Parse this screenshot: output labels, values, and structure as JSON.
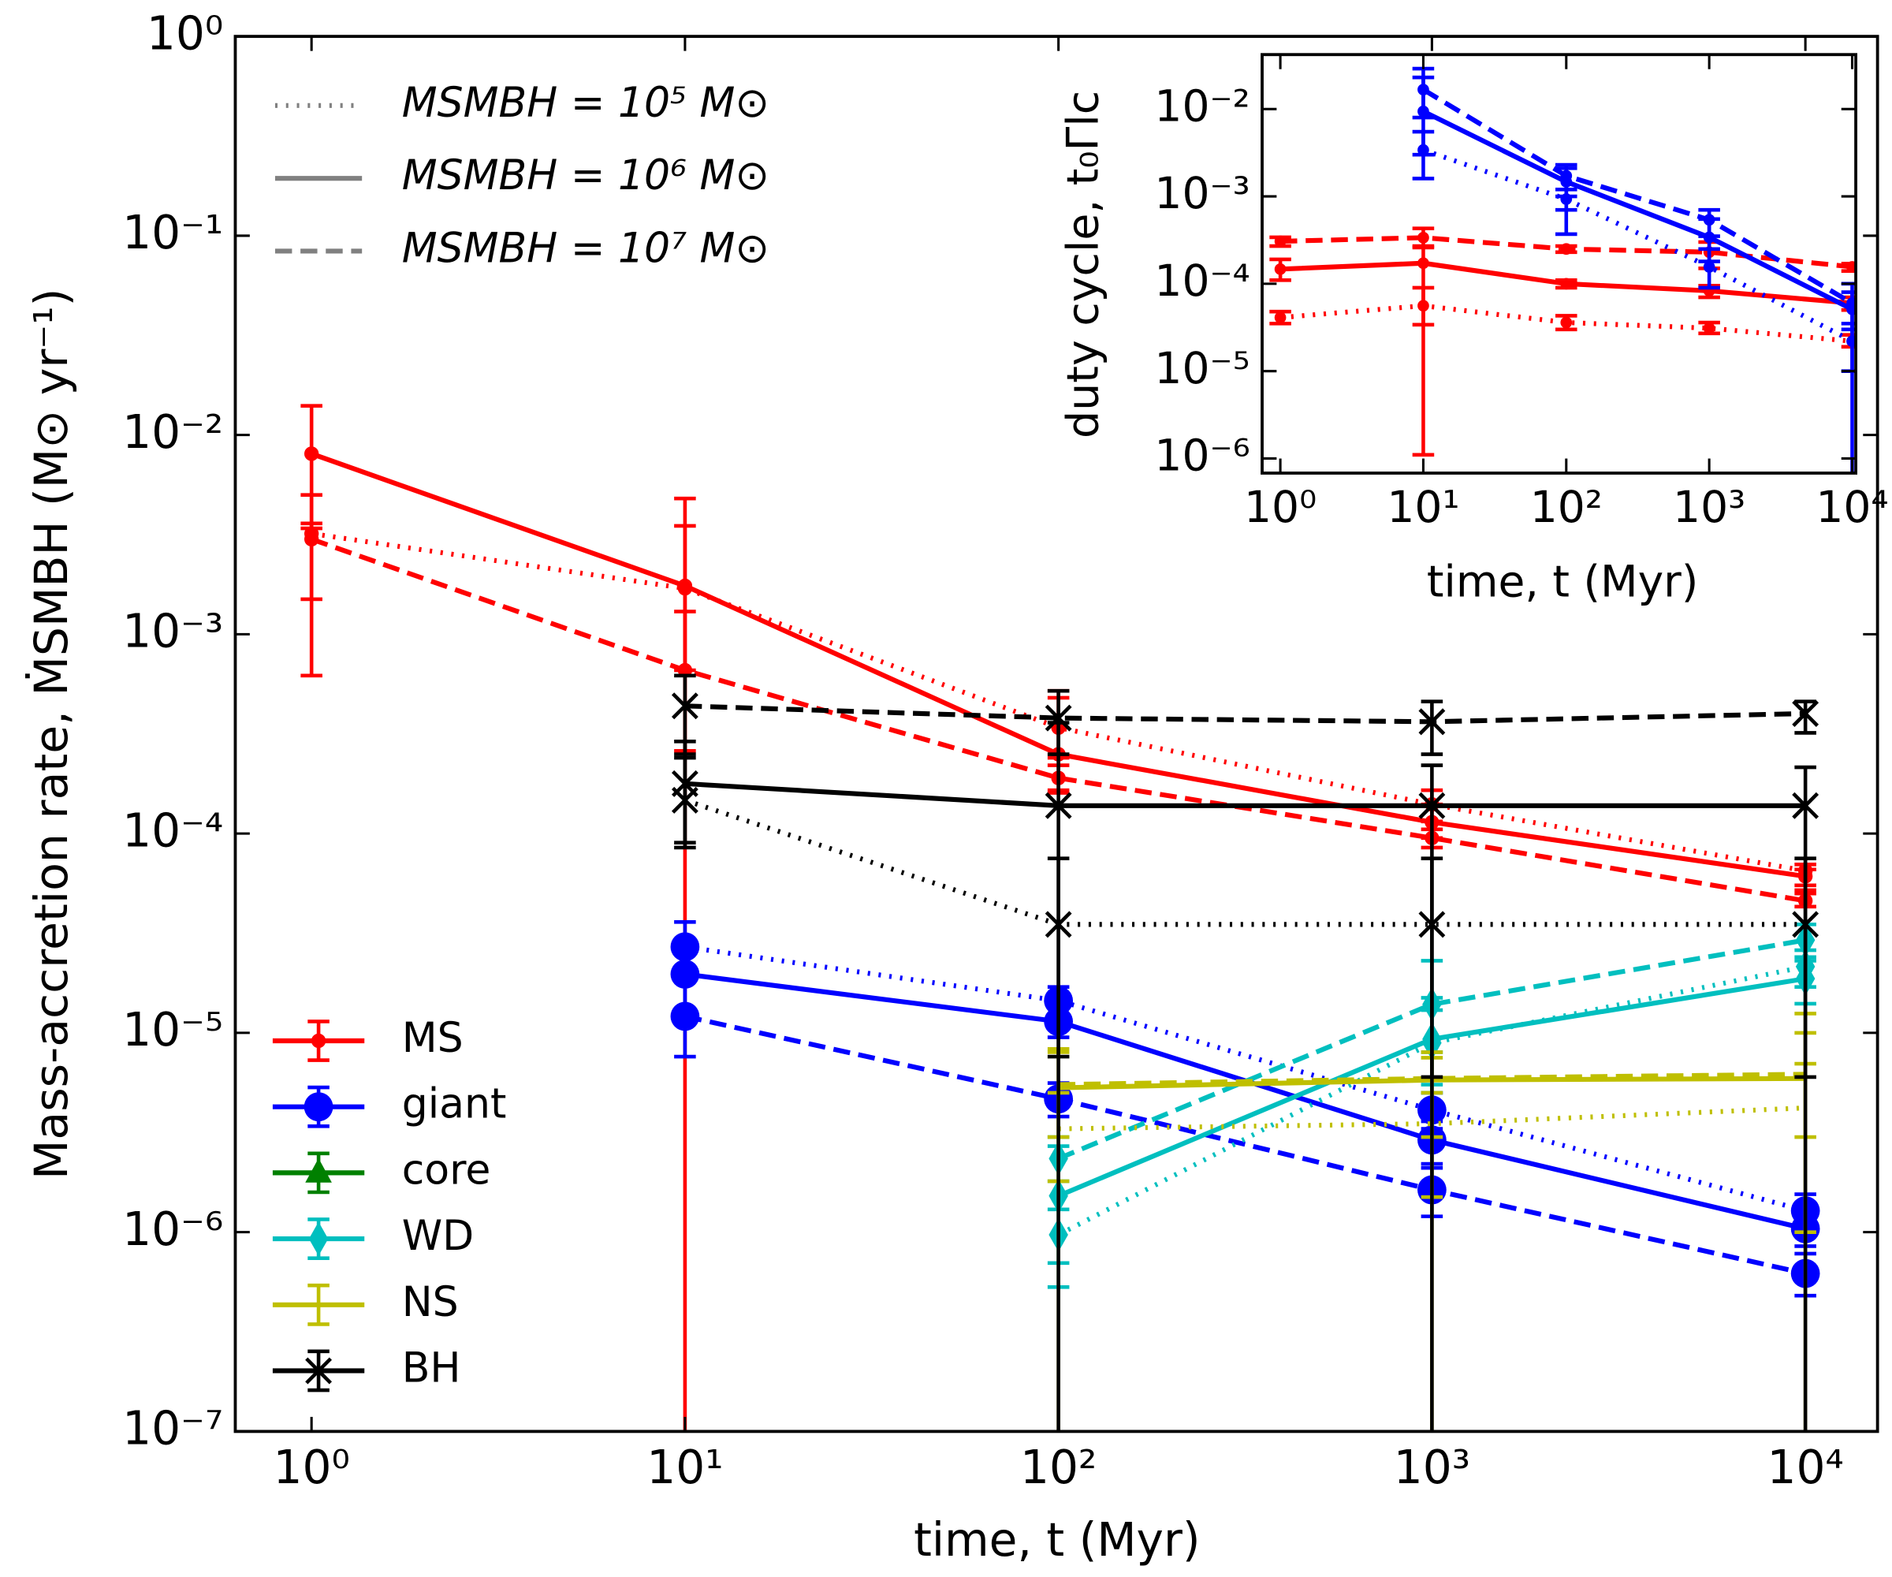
{
  "chart_data": {
    "type": "line",
    "xlabel": "time,  t (Myr)",
    "ylabel": "Mass-accretion rate,  ṀSMBH (M⊙ yr⁻¹)",
    "xscale": "log",
    "yscale": "log",
    "xlim": [
      0.625,
      15600
    ],
    "ylim": [
      1e-07,
      1
    ],
    "xticks": [
      {
        "value": 1,
        "label": "10⁰"
      },
      {
        "value": 10,
        "label": "10¹"
      },
      {
        "value": 100,
        "label": "10²"
      },
      {
        "value": 1000,
        "label": "10³"
      },
      {
        "value": 10000,
        "label": "10⁴"
      }
    ],
    "yticks": [
      {
        "value": 1e-07,
        "label": "10⁻⁷"
      },
      {
        "value": 1e-06,
        "label": "10⁻⁶"
      },
      {
        "value": 1e-05,
        "label": "10⁻⁵"
      },
      {
        "value": 0.0001,
        "label": "10⁻⁴"
      },
      {
        "value": 0.001,
        "label": "10⁻³"
      },
      {
        "value": 0.01,
        "label": "10⁻²"
      },
      {
        "value": 0.1,
        "label": "10⁻¹"
      },
      {
        "value": 1,
        "label": "10⁰"
      }
    ],
    "masses": [
      {
        "label": "MSMBH = 10⁵ M⊙",
        "dash": "dotted"
      },
      {
        "label": "MSMBH = 10⁶ M⊙",
        "dash": "solid"
      },
      {
        "label": "MSMBH = 10⁷ M⊙",
        "dash": "dashed"
      }
    ],
    "mass_legend_loc": "upper left",
    "type_legend_loc": "lower left",
    "series": [
      {
        "name": "MS",
        "color": "#ff0000",
        "marker": "small-circle",
        "x": [
          1,
          10,
          100,
          1000,
          10000
        ],
        "values": [
          [
            0.0032,
            0.0017,
            0.00034,
            0.00014,
            6.5e-05
          ],
          [
            0.00805,
            0.00175,
            0.00025,
            0.000114,
            6.1e-05
          ],
          [
            0.003,
            0.00066,
            0.00019,
            9.5e-05,
            4.6e-05
          ]
        ],
        "lower": [
          [
            0.0015,
            0.00066,
            0.00024,
            0.000115,
            5.5e-05
          ],
          [
            0.0034,
            1e-08,
            0.00016,
            9.5e-05,
            5.2e-05
          ],
          [
            0.00062,
            0.00026,
            0.000165,
            8.5e-05,
            4.3e-05
          ]
        ],
        "upper": [
          [
            0.005,
            0.0035,
            0.00048,
            0.000165,
            7e-05
          ],
          [
            0.014,
            0.0048,
            0.00052,
            0.00014,
            6.6e-05
          ],
          [
            0.0036,
            0.0013,
            0.00022,
            0.000105,
            5e-05
          ]
        ]
      },
      {
        "name": "giant",
        "color": "#0000ff",
        "marker": "circle",
        "x": [
          10,
          100,
          1000,
          10000
        ],
        "values": [
          [
            2.7e-05,
            1.45e-05,
            4.1e-06,
            1.28e-06
          ],
          [
            1.97e-05,
            1.14e-05,
            2.9e-06,
            1.04e-06
          ],
          [
            1.21e-05,
            4.66e-06,
            1.63e-06,
            6.2e-07
          ]
        ],
        "lower": [
          [
            1.9e-05,
            1.2e-05,
            3.3e-06,
            1.05e-06
          ],
          [
            1.3e-05,
            9.5e-06,
            2.2e-06,
            8.5e-07
          ],
          [
            7.6e-06,
            3.8e-06,
            1.2e-06,
            4.8e-07
          ]
        ],
        "upper": [
          [
            3.6e-05,
            1.7e-05,
            5e-06,
            1.55e-06
          ],
          [
            2.8e-05,
            1.4e-05,
            3.6e-06,
            1.25e-06
          ],
          [
            1.8e-05,
            5.6e-06,
            2.1e-06,
            7.8e-07
          ]
        ]
      },
      {
        "name": "core",
        "color": "#008000",
        "marker": "triangle",
        "x": [],
        "values": [
          [],
          [],
          []
        ],
        "lower": [
          [],
          [],
          []
        ],
        "upper": [
          [],
          [],
          []
        ]
      },
      {
        "name": "WD",
        "color": "#00bfbf",
        "marker": "thin-diamond",
        "x": [
          100,
          1000,
          10000
        ],
        "values": [
          [
            9.7e-07,
            8.9e-06,
            2.15e-05
          ],
          [
            1.52e-06,
            9.3e-06,
            1.87e-05
          ],
          [
            2.34e-06,
            1.39e-05,
            2.92e-05
          ]
        ],
        "lower": [
          [
            7e-07,
            5e-06,
            1.7e-05
          ],
          [
            5.3e-07,
            5.5e-06,
            1.4e-05
          ],
          [
            1.8e-06,
            8e-06,
            2.4e-05
          ]
        ],
        "upper": [
          [
            1.3e-06,
            1.3e-05,
            2.6e-05
          ],
          [
            2.7e-06,
            1.5e-05,
            2.3e-05
          ],
          [
            3e-06,
            2.3e-05,
            3.5e-05
          ]
        ]
      },
      {
        "name": "NS",
        "color": "#bfbf00",
        "marker": "none",
        "x": [
          100,
          1000,
          10000
        ],
        "values": [
          [
            3.3e-06,
            3.5e-06,
            4.2e-06
          ],
          [
            5.3e-06,
            5.8e-06,
            5.9e-06
          ],
          [
            5.5e-06,
            5.9e-06,
            6.2e-06
          ]
        ],
        "lower": [
          [
            1.8e-06,
            1.5e-06,
            1e-06
          ],
          [
            1e-08,
            1e-08,
            1e-08
          ],
          [
            3e-06,
            3e-06,
            3e-06
          ]
        ],
        "upper": [
          [
            5e-06,
            5e-06,
            7e-06
          ],
          [
            8.3e-06,
            7.5e-06,
            1.25e-05
          ],
          [
            8e-06,
            8e-06,
            1e-05
          ]
        ]
      },
      {
        "name": "BH",
        "color": "#000000",
        "marker": "x",
        "x": [
          10,
          100,
          1000,
          10000
        ],
        "values": [
          [
            0.000147,
            3.5e-05,
            3.5e-05,
            3.5e-05
          ],
          [
            0.000178,
            0.000138,
            0.000138,
            0.000138
          ],
          [
            0.000437,
            0.00038,
            0.000364,
            0.0004
          ]
        ],
        "lower": [
          [
            9e-05,
            7.6e-06,
            6e-06,
            6e-06
          ],
          [
            8.5e-05,
            1e-08,
            1e-08,
            1e-08
          ],
          [
            0.00025,
            0.00025,
            0.00025,
            0.00032
          ]
        ],
        "upper": [
          [
            0.00024,
            7.5e-05,
            7.5e-05,
            7.5e-05
          ],
          [
            0.00029,
            0.00036,
            0.00022,
            0.000215
          ],
          [
            0.00062,
            0.00052,
            0.00046,
            0.00046
          ]
        ]
      }
    ],
    "inset": {
      "xlabel": "time,  t (Myr)",
      "ylabel": "duty cycle,  t₀Γlc",
      "xscale": "log",
      "yscale": "log",
      "xlim": [
        0.746,
        10600
      ],
      "ylim": [
        6.8e-07,
        0.042
      ],
      "xticks": [
        {
          "value": 1,
          "label": "10⁰"
        },
        {
          "value": 10,
          "label": "10¹"
        },
        {
          "value": 100,
          "label": "10²"
        },
        {
          "value": 1000,
          "label": "10³"
        },
        {
          "value": 10000,
          "label": "10⁴"
        }
      ],
      "yticks": [
        {
          "value": 1e-06,
          "label": "10⁻⁶"
        },
        {
          "value": 1e-05,
          "label": "10⁻⁵"
        },
        {
          "value": 0.0001,
          "label": "10⁻⁴"
        },
        {
          "value": 0.001,
          "label": "10⁻³"
        },
        {
          "value": 0.01,
          "label": "10⁻²"
        }
      ],
      "series": [
        {
          "color": "#ff0000",
          "marker": "small-circle",
          "x": [
            1,
            10,
            100,
            1000,
            10000
          ],
          "values": [
            [
              4.1e-05,
              5.6e-05,
              3.6e-05,
              3.1e-05,
              2.2e-05
            ],
            [
              0.000147,
              0.000172,
              0.0001,
              8.3e-05,
              6e-05
            ],
            [
              0.000306,
              0.000337,
              0.00025,
              0.00023,
              0.000156
            ]
          ],
          "lower": [
            [
              3.5e-05,
              3.4e-05,
              3e-05,
              2.7e-05,
              1.9e-05
            ],
            [
              0.00011,
              1.1e-06,
              9e-05,
              7e-05,
              5e-05
            ],
            [
              0.00027,
              0.00026,
              0.00023,
              0.00015,
              0.00014
            ]
          ],
          "upper": [
            [
              4.8e-05,
              9e-05,
              4.3e-05,
              3.6e-05,
              2.6e-05
            ],
            [
              0.00019,
              0.00027,
              0.00011,
              9.5e-05,
              7e-05
            ],
            [
              0.00034,
              0.00043,
              0.00027,
              0.0003,
              0.00017
            ]
          ]
        },
        {
          "color": "#0000ff",
          "marker": "small-circle",
          "x": [
            10,
            100,
            1000,
            10000
          ],
          "values": [
            [
              0.0034,
              0.00093,
              0.000156,
              2.2e-05
            ],
            [
              0.0094,
              0.00147,
              0.00034,
              5.1e-05
            ],
            [
              0.0167,
              0.00172,
              0.00054,
              6e-05
            ]
          ],
          "lower": [
            [
              0.0016,
              0.00037,
              9e-05,
              1e-05
            ],
            [
              0.003,
              0.0007,
              0.00018,
              1e-07
            ],
            [
              0.008,
              0.001,
              0.00035,
              3e-05
            ]
          ],
          "upper": [
            [
              0.0055,
              0.0012,
              0.00025,
              3.5e-05
            ],
            [
              0.023,
              0.0021,
              0.00055,
              0.0001
            ],
            [
              0.029,
              0.0023,
              0.0007,
              8e-05
            ]
          ]
        }
      ]
    }
  }
}
